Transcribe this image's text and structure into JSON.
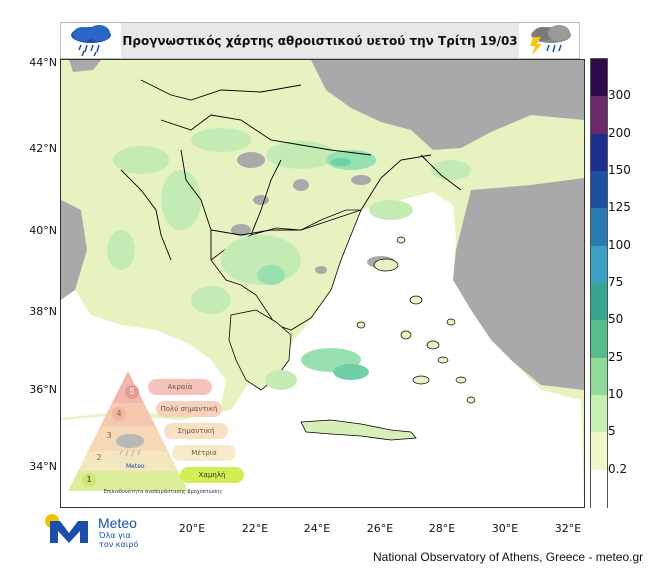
{
  "header": {
    "title": "Προγνωστικός χάρτης αθροιστικού υετού την Τρίτη 19/03",
    "left_icon": "rain-cloud-icon",
    "right_icon": "thunderstorm-cloud-icon"
  },
  "map": {
    "lat_labels": [
      "44°N",
      "42°N",
      "40°N",
      "38°N",
      "36°N",
      "34°N"
    ],
    "lon_labels": [
      "20°E",
      "22°E",
      "24°E",
      "26°E",
      "28°E",
      "30°E",
      "32°E"
    ],
    "colors": {
      "sea": "#ffffff",
      "land_outside": "#a9a9a9",
      "precip_low": "#e6f3c0",
      "precip_mid": "#c5ebb5",
      "precip_high": "#98e0b0",
      "precip_peak": "#6fd0a6",
      "border": "#000000"
    }
  },
  "colorbar": {
    "labels": [
      "300",
      "200",
      "150",
      "125",
      "100",
      "75",
      "50",
      "25",
      "10",
      "5",
      "0.2"
    ],
    "colors": [
      "#2d0a4a",
      "#6a2a6a",
      "#1c2f8f",
      "#1e4fa0",
      "#2a7bb5",
      "#3c9fc4",
      "#3aa690",
      "#55be8a",
      "#8fdc9a",
      "#c8efb2",
      "#eef7c8",
      "#ffffff"
    ]
  },
  "legend": {
    "levels": [
      {
        "num": "5",
        "label": "Ακραία"
      },
      {
        "num": "4",
        "label": "Πολύ σημαντική"
      },
      {
        "num": "3",
        "label": "Σημαντική"
      },
      {
        "num": "2",
        "label": "Μέτρια"
      },
      {
        "num": "1",
        "label": "Χαμηλή"
      }
    ],
    "caption": "Επικινδυνότητα αναπαράστασης βροχόπτωσης",
    "brand": "Meteo"
  },
  "logo": {
    "name": "Meteo",
    "tagline": "Όλα για τον καιρό"
  },
  "footer": {
    "credit": "National Observatory of Athens, Greece - meteo.gr"
  }
}
